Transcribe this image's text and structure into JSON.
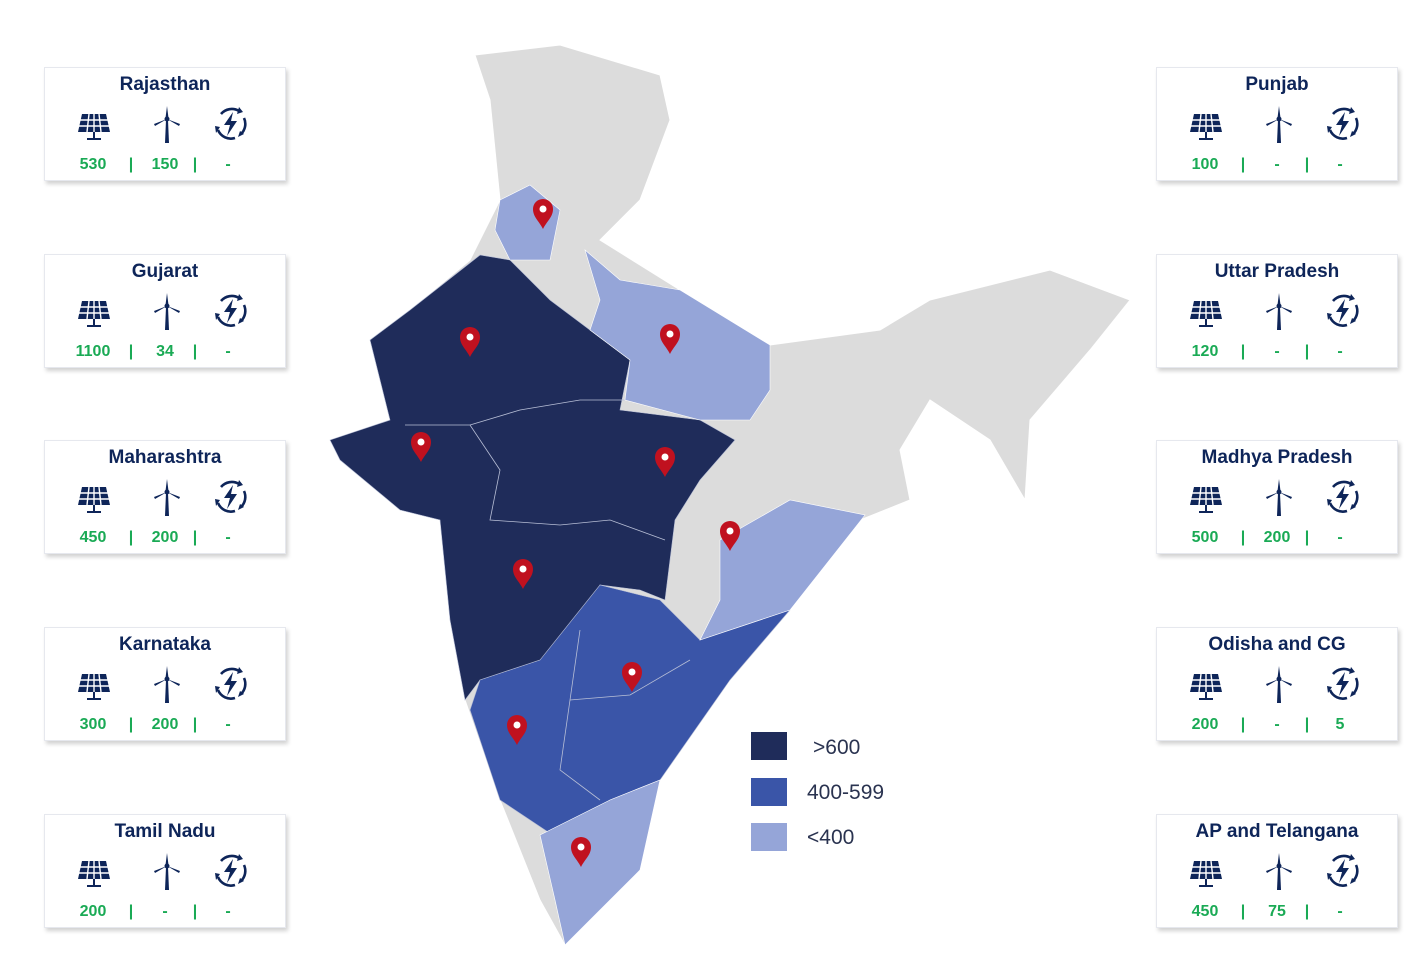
{
  "colors": {
    "high": "#1f2c5a",
    "mid": "#3a55a8",
    "low": "#95a5d8",
    "none": "#dcdcdc",
    "value": "#1aaa55",
    "pin": "#c0111f",
    "title": "#0e2559"
  },
  "icons": [
    "solar-panel-icon",
    "wind-turbine-icon",
    "renewable-energy-cycle-icon"
  ],
  "legend": [
    {
      "label": ">600",
      "color": "#1f2c5a"
    },
    {
      "label": "400-599",
      "color": "#3a55a8"
    },
    {
      "label": "<400",
      "color": "#95a5d8"
    }
  ],
  "cards_left": [
    {
      "state": "Rajasthan",
      "solar": "530",
      "wind": "150",
      "hybrid": "-"
    },
    {
      "state": "Gujarat",
      "solar": "1100",
      "wind": "34",
      "hybrid": "-"
    },
    {
      "state": "Maharashtra",
      "solar": "450",
      "wind": "200",
      "hybrid": "-"
    },
    {
      "state": "Karnataka",
      "solar": "300",
      "wind": "200",
      "hybrid": "-"
    },
    {
      "state": "Tamil Nadu",
      "solar": "200",
      "wind": "-",
      "hybrid": "-"
    }
  ],
  "cards_right": [
    {
      "state": "Punjab",
      "solar": "100",
      "wind": "-",
      "hybrid": "-"
    },
    {
      "state": "Uttar Pradesh",
      "solar": "120",
      "wind": "-",
      "hybrid": "-"
    },
    {
      "state": "Madhya Pradesh",
      "solar": "500",
      "wind": "200",
      "hybrid": "-"
    },
    {
      "state": "Odisha and CG",
      "solar": "200",
      "wind": "-",
      "hybrid": "5"
    },
    {
      "state": "AP and Telangana",
      "solar": "450",
      "wind": "75",
      "hybrid": "-"
    }
  ],
  "separator": "|"
}
